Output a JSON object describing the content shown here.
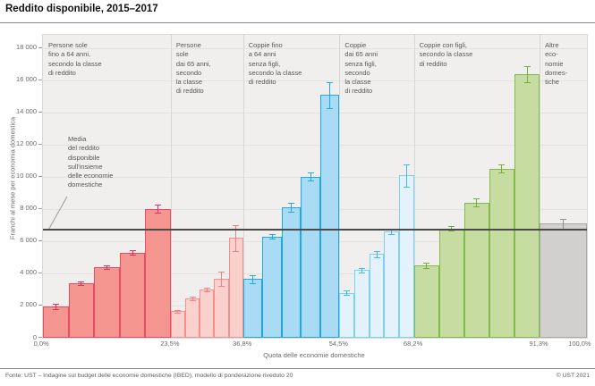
{
  "page": {
    "title": "Reddito disponibile, 2015–2017"
  },
  "footer": {
    "source": "Fonte: UST – Indagine sul budget delle economie domestiche (IBED), modello di ponderazione riveduto 20",
    "copyright": "© UST 2021"
  },
  "chart_data": {
    "type": "bar",
    "variant": "variable-width grouped bars with 95% confidence error bars",
    "title": "Reddito disponibile, 2015–2017",
    "xlabel": "Quota delle economie domestiche",
    "ylabel": "Franchi al mese per economia domestica",
    "ylim": [
      0,
      18833
    ],
    "ytick_step": 2000,
    "grid": true,
    "yticks": [
      {
        "value": 0,
        "label": "0"
      },
      {
        "value": 2000,
        "label": "2 000"
      },
      {
        "value": 4000,
        "label": "4 000"
      },
      {
        "value": 6000,
        "label": "6 000"
      },
      {
        "value": 8000,
        "label": "8 000"
      },
      {
        "value": 10000,
        "label": "10 000"
      },
      {
        "value": 12000,
        "label": "12 000"
      },
      {
        "value": 14000,
        "label": "14 000"
      },
      {
        "value": 16000,
        "label": "16 000"
      },
      {
        "value": 18000,
        "label": "18 000"
      }
    ],
    "xticks": [
      {
        "pct": 0,
        "label": "0,0%"
      },
      {
        "pct": 23.5,
        "label": "23,5%"
      },
      {
        "pct": 36.8,
        "label": "36,8%"
      },
      {
        "pct": 54.5,
        "label": "54,5%"
      },
      {
        "pct": 68.2,
        "label": "68,2%"
      },
      {
        "pct": 91.3,
        "label": "91,3%"
      },
      {
        "pct": 100,
        "label": "100,0%"
      }
    ],
    "mean_line": {
      "value": 6700,
      "color": "#4a4a4a",
      "label_lines": [
        "Media",
        "del reddito",
        "disponibile",
        "sull'insieme",
        "delle economie",
        "domestiche"
      ]
    },
    "groups": [
      {
        "name": "persone-sole-fino-64",
        "label_lines": [
          "Persone sole",
          "fino a 64 anni,",
          "secondo la classe",
          "di reddito"
        ],
        "from_pct": 0,
        "to_pct": 23.5,
        "fill": "#f5958f",
        "stroke": "#e64c62",
        "error_color": "#e3315f",
        "bars": [
          {
            "value": 1950,
            "ci": 150
          },
          {
            "value": 3400,
            "ci": 120
          },
          {
            "value": 4400,
            "ci": 120
          },
          {
            "value": 5300,
            "ci": 120
          },
          {
            "value": 8000,
            "ci": 250
          }
        ]
      },
      {
        "name": "persone-sole-dai-65",
        "label_lines": [
          "Persone",
          "sole",
          "dai 65 anni,",
          "secondo",
          "la classe",
          "di reddito"
        ],
        "from_pct": 23.5,
        "to_pct": 36.8,
        "fill": "#fbd1ce",
        "stroke": "#f0918d",
        "error_color": "#ee8087",
        "bars": [
          {
            "value": 1650,
            "ci": 90
          },
          {
            "value": 2450,
            "ci": 110
          },
          {
            "value": 3000,
            "ci": 130
          },
          {
            "value": 3650,
            "ci": 450
          },
          {
            "value": 6200,
            "ci": 800
          }
        ]
      },
      {
        "name": "coppie-fino-64-senza-figli",
        "label_lines": [
          "Coppie fino",
          "a 64 anni",
          "senza figli,",
          "secondo la classe",
          "di reddito"
        ],
        "from_pct": 36.8,
        "to_pct": 54.5,
        "fill": "#a9dcf4",
        "stroke": "#21a8dd",
        "error_color": "#21a8dd",
        "bars": [
          {
            "value": 3650,
            "ci": 250
          },
          {
            "value": 6300,
            "ci": 130
          },
          {
            "value": 8100,
            "ci": 280
          },
          {
            "value": 10000,
            "ci": 250
          },
          {
            "value": 15100,
            "ci": 800
          }
        ]
      },
      {
        "name": "coppie-dai-65-senza-figli",
        "label_lines": [
          "Coppie",
          "dai 65 anni",
          "senza figli,",
          "secondo",
          "la classe",
          "di reddito"
        ],
        "from_pct": 54.5,
        "to_pct": 68.2,
        "fill": "#e3f2fc",
        "stroke": "#7ed0ed",
        "error_color": "#3fbbe4",
        "bars": [
          {
            "value": 2800,
            "ci": 150
          },
          {
            "value": 4200,
            "ci": 130
          },
          {
            "value": 5200,
            "ci": 180
          },
          {
            "value": 6600,
            "ci": 130
          },
          {
            "value": 10100,
            "ci": 700
          }
        ]
      },
      {
        "name": "coppie-con-figli",
        "label_lines": [
          "Coppie con figli,",
          "secondo la classe",
          "di reddito"
        ],
        "from_pct": 68.2,
        "to_pct": 91.3,
        "fill": "#c7dca0",
        "stroke": "#7fbc4c",
        "error_color": "#72b23c",
        "bars": [
          {
            "value": 4500,
            "ci": 150
          },
          {
            "value": 6800,
            "ci": 150
          },
          {
            "value": 8400,
            "ci": 250
          },
          {
            "value": 10500,
            "ci": 250
          },
          {
            "value": 16400,
            "ci": 500
          }
        ]
      },
      {
        "name": "altre-economie-domestiche",
        "label_lines": [
          "Altre",
          "eco-",
          "nomie",
          "domes-",
          "tiche"
        ],
        "from_pct": 91.3,
        "to_pct": 100,
        "fill": "#d1d0cf",
        "stroke": "#a9a8a7",
        "error_color": "#8f8e8d",
        "bars": [
          {
            "value": 7100,
            "ci": 300
          }
        ]
      }
    ]
  }
}
